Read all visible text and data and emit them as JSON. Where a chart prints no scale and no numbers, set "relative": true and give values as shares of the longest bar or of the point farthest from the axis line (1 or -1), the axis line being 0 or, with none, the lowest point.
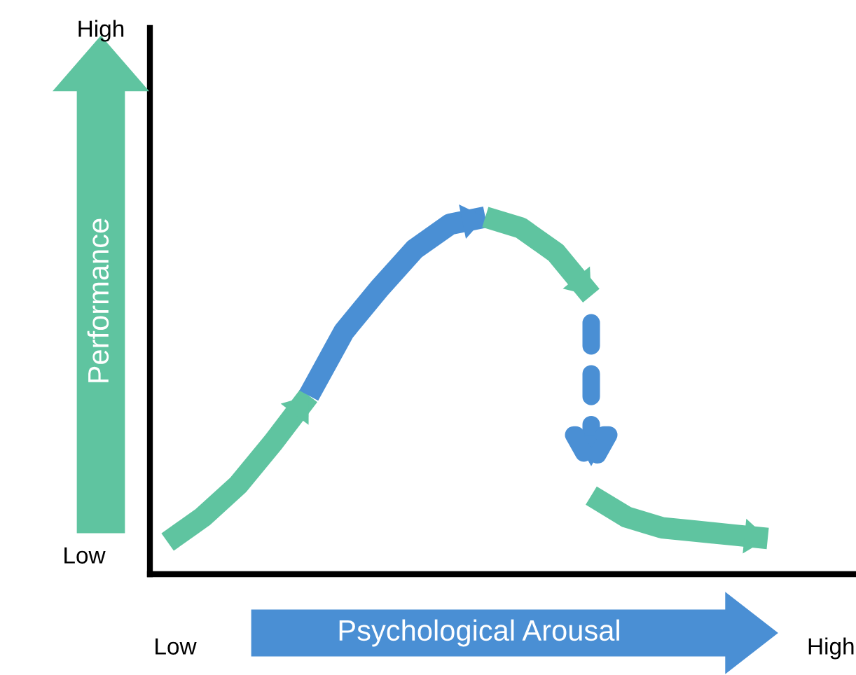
{
  "chart_data": {
    "type": "line",
    "relative": true,
    "xlabel": "Psychological Arousal",
    "ylabel": "Performance",
    "legend": false,
    "marker": "none",
    "categories": [
      null,
      null,
      null,
      null,
      null,
      null,
      null,
      null,
      null,
      null,
      null,
      null,
      null,
      null,
      null,
      null,
      null,
      null
    ],
    "annotations": [
      "High",
      "Low",
      "Low",
      "High"
    ],
    "series": [
      {
        "color": "#5fc4a0",
        "values": [
          0.09,
          0.16,
          0.25,
          0.37,
          0.5,
          null,
          null,
          null,
          null,
          null,
          null,
          null,
          null,
          null,
          null,
          null,
          null,
          null
        ]
      },
      {
        "color": "#4a8fd4",
        "values": [
          null,
          null,
          null,
          null,
          0.5,
          0.68,
          0.8,
          0.91,
          0.98,
          1.0,
          null,
          null,
          null,
          null,
          null,
          null,
          null,
          null
        ]
      },
      {
        "color": "#5fc4a0",
        "values": [
          null,
          null,
          null,
          null,
          null,
          null,
          null,
          null,
          null,
          1.0,
          0.97,
          0.9,
          0.78,
          null,
          null,
          null,
          null,
          null
        ]
      },
      {
        "color": "#5fc4a0",
        "values": [
          null,
          null,
          null,
          null,
          null,
          null,
          null,
          null,
          null,
          null,
          null,
          null,
          0.22,
          0.16,
          0.13,
          0.12,
          0.11,
          0.1
        ]
      }
    ]
  }
}
